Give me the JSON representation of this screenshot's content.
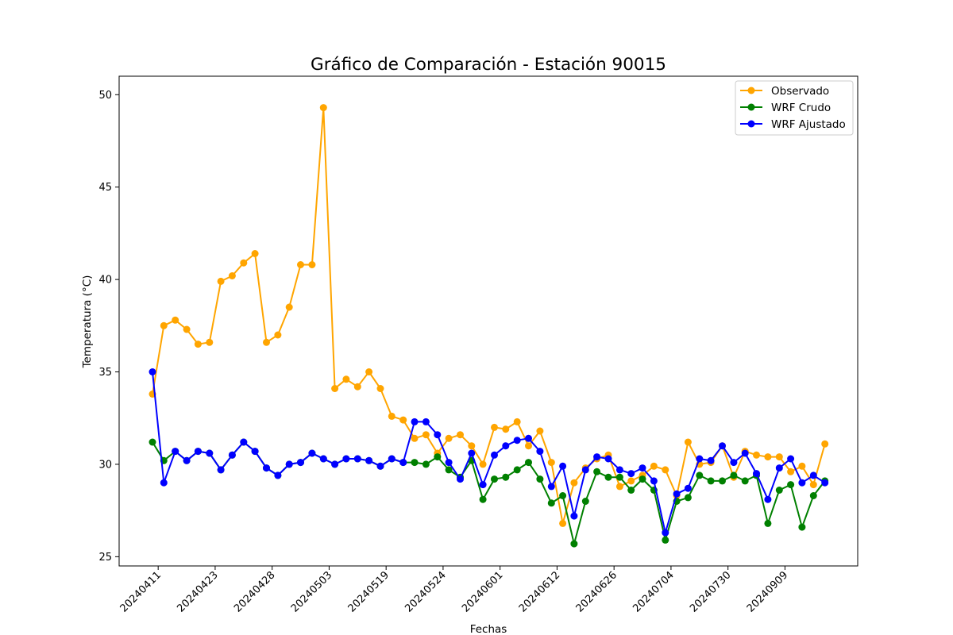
{
  "chart_data": {
    "type": "line",
    "title": "Gráfico de Comparación - Estación 90015",
    "xlabel": "Fechas",
    "ylabel": "Temperatura (°C)",
    "ylim": [
      24.5,
      51.0
    ],
    "yticks": [
      25,
      30,
      35,
      40,
      45,
      50
    ],
    "xtick_labels": [
      "20240411",
      "20240423",
      "20240428",
      "20240503",
      "20240519",
      "20240524",
      "20240601",
      "20240612",
      "20240626",
      "20240704",
      "20240730",
      "20240909"
    ],
    "xtick_positions": [
      0.5,
      5.5,
      10.5,
      15.5,
      20.5,
      25.5,
      30.5,
      35.5,
      40.5,
      45.5,
      50.5,
      55.5
    ],
    "legend_position": "upper right",
    "grid": false,
    "series": [
      {
        "name": "Observado",
        "color": "#ffa500",
        "values": [
          33.8,
          37.5,
          37.8,
          37.3,
          36.5,
          36.6,
          39.9,
          40.2,
          40.9,
          41.4,
          36.6,
          37.0,
          38.5,
          40.8,
          40.8,
          49.3,
          34.1,
          34.6,
          34.2,
          35.0,
          34.1,
          32.6,
          32.4,
          31.4,
          31.6,
          30.6,
          31.4,
          31.6,
          31.0,
          30.0,
          32.0,
          31.9,
          32.3,
          31.0,
          31.8,
          30.1,
          26.8,
          29.0,
          29.8,
          30.3,
          30.5,
          28.8,
          29.1,
          29.4,
          29.9,
          29.7,
          28.3,
          31.2,
          30.0,
          30.1,
          31.0,
          29.3,
          30.7,
          30.5,
          30.4,
          30.4,
          29.6,
          29.9,
          28.9,
          31.1
        ]
      },
      {
        "name": "WRF Crudo",
        "color": "#008000",
        "values": [
          31.2,
          30.2,
          30.7,
          30.2,
          30.7,
          30.6,
          29.7,
          30.5,
          31.2,
          30.7,
          29.8,
          29.4,
          30.0,
          30.1,
          30.6,
          30.3,
          30.0,
          30.3,
          30.3,
          30.2,
          29.9,
          30.3,
          30.1,
          30.1,
          30.0,
          30.4,
          29.7,
          29.3,
          30.2,
          28.1,
          29.2,
          29.3,
          29.7,
          30.1,
          29.2,
          27.9,
          28.3,
          25.7,
          28.0,
          29.6,
          29.3,
          29.3,
          28.6,
          29.2,
          28.6,
          25.9,
          28.0,
          28.2,
          29.4,
          29.1,
          29.1,
          29.4,
          29.1,
          29.4,
          26.8,
          28.6,
          28.9,
          26.6,
          28.3,
          29.1
        ]
      },
      {
        "name": "WRF Ajustado",
        "color": "#0000ff",
        "values": [
          35.0,
          29.0,
          30.7,
          30.2,
          30.7,
          30.6,
          29.7,
          30.5,
          31.2,
          30.7,
          29.8,
          29.4,
          30.0,
          30.1,
          30.6,
          30.3,
          30.0,
          30.3,
          30.3,
          30.2,
          29.9,
          30.3,
          30.1,
          32.3,
          32.3,
          31.6,
          30.1,
          29.2,
          30.6,
          28.9,
          30.5,
          31.0,
          31.3,
          31.4,
          30.7,
          28.8,
          29.9,
          27.2,
          29.7,
          30.4,
          30.3,
          29.7,
          29.5,
          29.8,
          29.1,
          26.3,
          28.4,
          28.7,
          30.3,
          30.2,
          31.0,
          30.1,
          30.6,
          29.5,
          28.1,
          29.8,
          30.3,
          29.0,
          29.4,
          29.0
        ]
      }
    ]
  }
}
